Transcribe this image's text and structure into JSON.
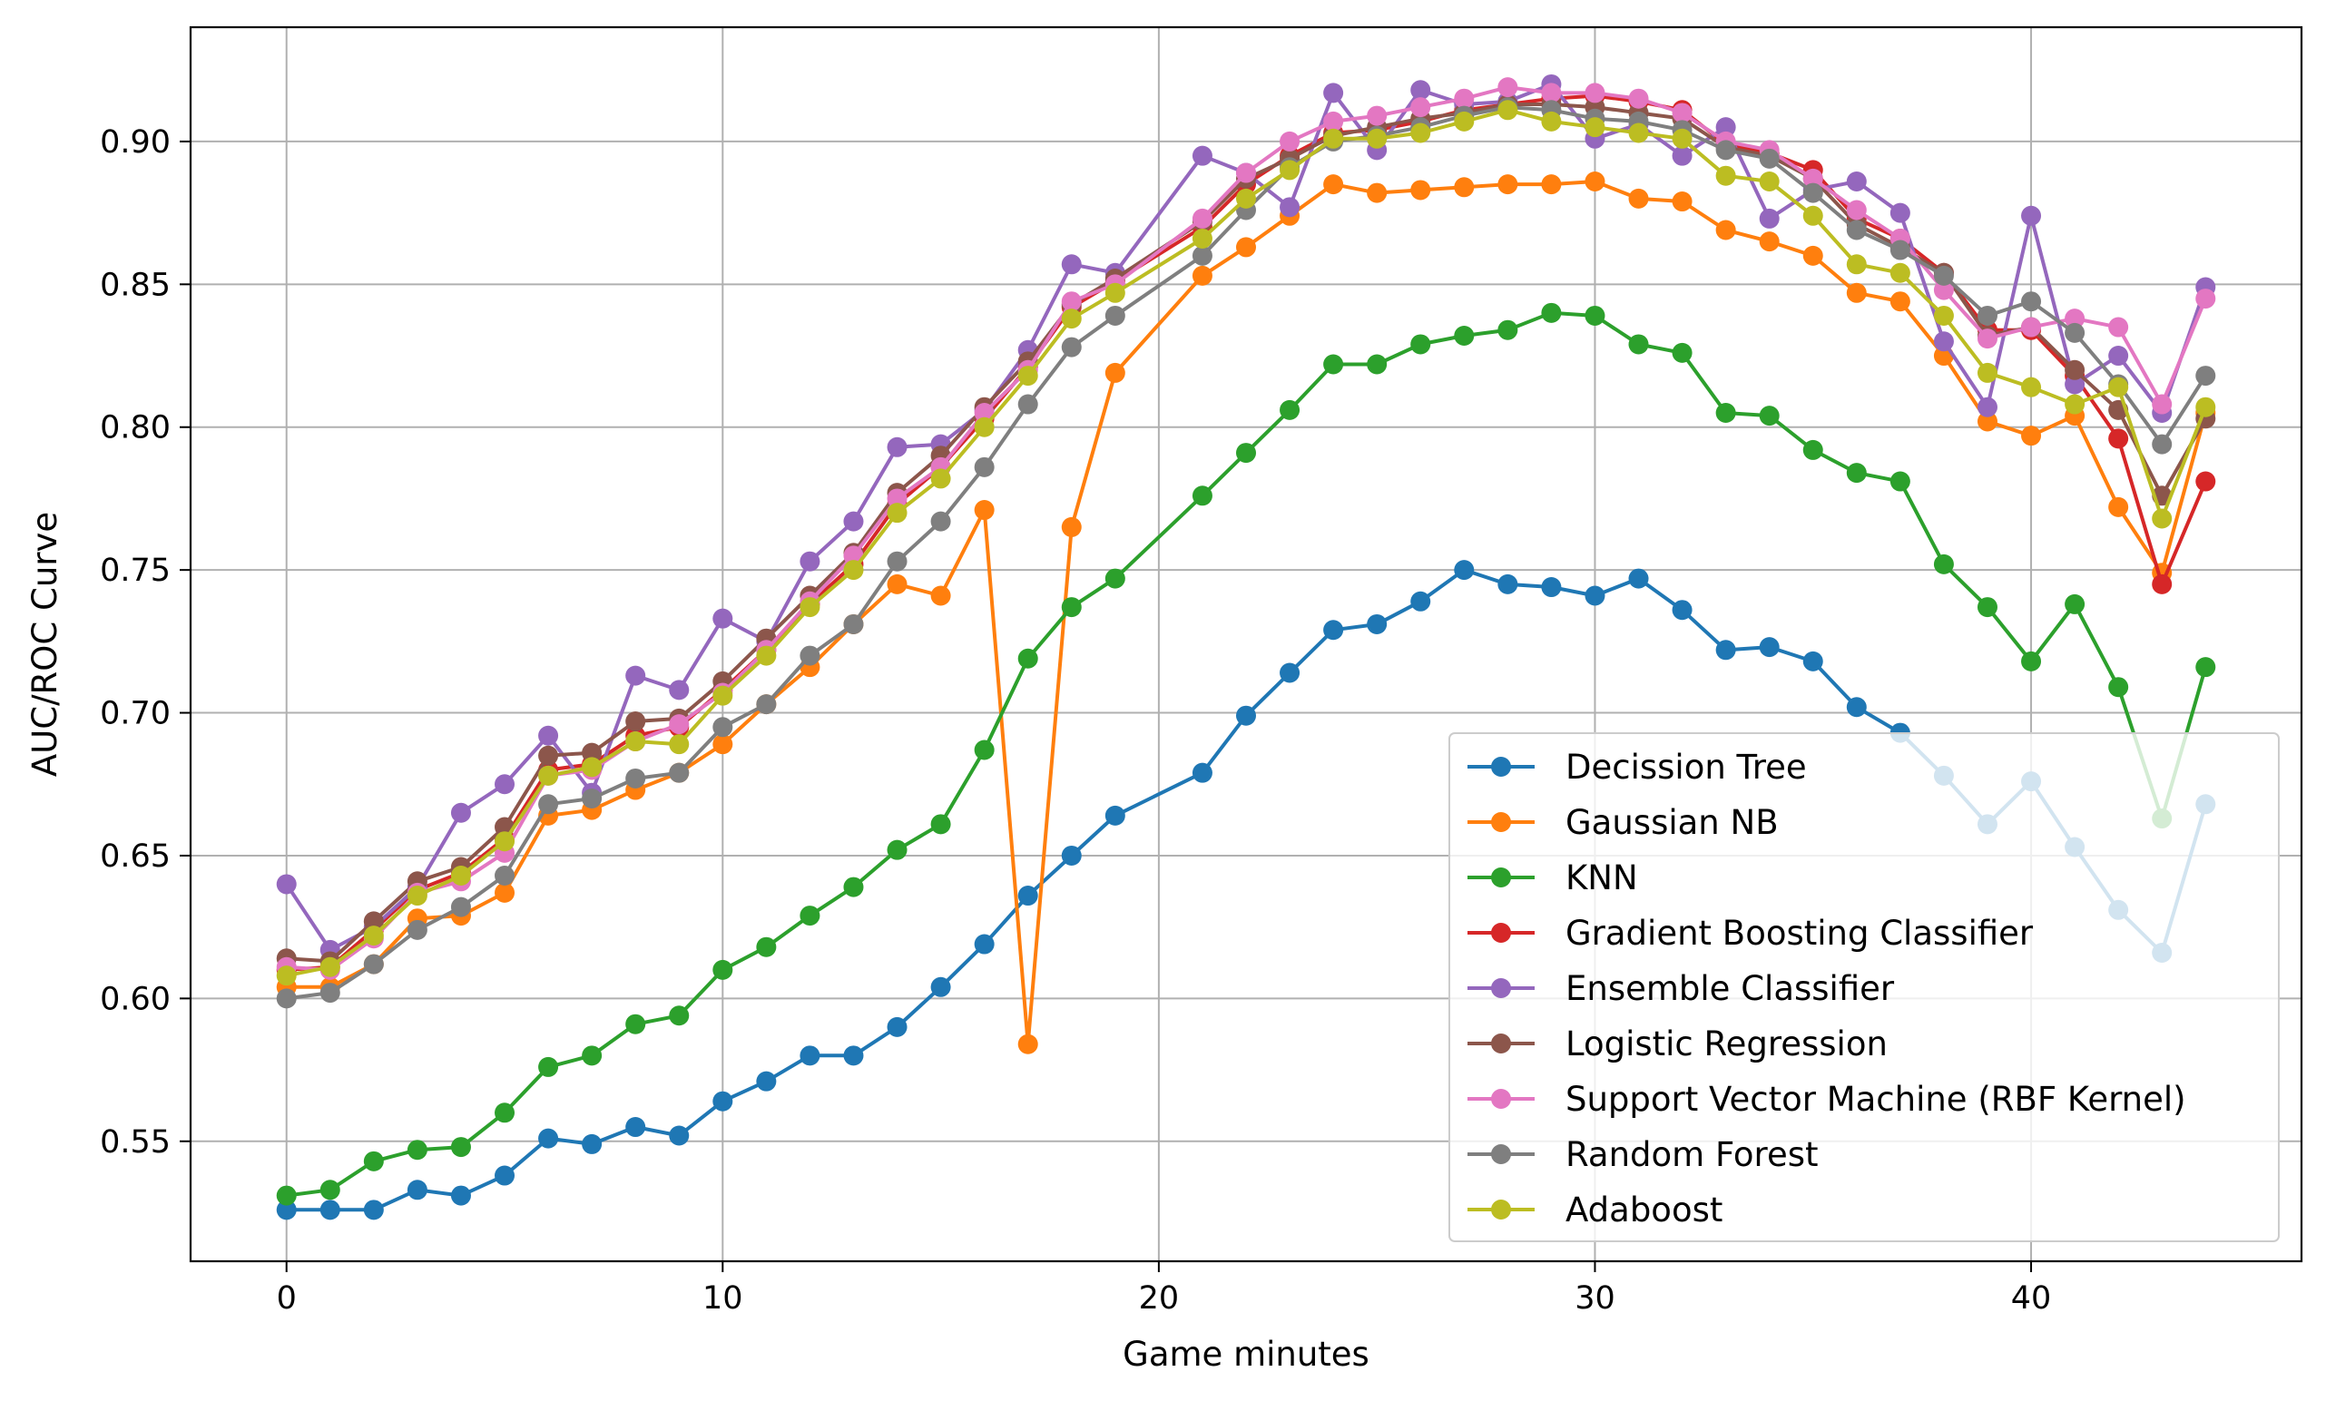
{
  "chart_data": {
    "type": "line",
    "title": "",
    "xlabel": "Game minutes",
    "ylabel": "AUC/ROC Curve",
    "xlim": [
      -2.2,
      46.2
    ],
    "ylim": [
      0.508,
      0.94
    ],
    "xticks": [
      0,
      10,
      20,
      30,
      40
    ],
    "yticks": [
      0.55,
      0.6,
      0.65,
      0.7,
      0.75,
      0.8,
      0.85,
      0.9
    ],
    "ytick_labels": [
      "0.55",
      "0.60",
      "0.65",
      "0.70",
      "0.75",
      "0.80",
      "0.85",
      "0.90"
    ],
    "grid": true,
    "legend_position": "lower right",
    "x": [
      0,
      1,
      2,
      3,
      4,
      5,
      6,
      7,
      8,
      9,
      10,
      11,
      12,
      13,
      14,
      15,
      16,
      17,
      18,
      19,
      21,
      22,
      23,
      24,
      25,
      26,
      27,
      28,
      29,
      30,
      31,
      32,
      33,
      34,
      35,
      36,
      37,
      38,
      39,
      40,
      41,
      42,
      43,
      44
    ],
    "series": [
      {
        "name": "Decission Tree",
        "color": "#1f77b4",
        "values": [
          0.526,
          0.526,
          0.526,
          0.533,
          0.531,
          0.538,
          0.551,
          0.549,
          0.555,
          0.552,
          0.564,
          0.571,
          0.58,
          0.58,
          0.59,
          0.604,
          0.619,
          0.636,
          0.65,
          0.664,
          0.679,
          0.699,
          0.714,
          0.729,
          0.731,
          0.739,
          0.75,
          0.745,
          0.744,
          0.741,
          0.747,
          0.736,
          0.722,
          0.723,
          0.718,
          0.702,
          0.693,
          0.678,
          0.661,
          0.676,
          0.653,
          0.631,
          0.616,
          0.668
        ]
      },
      {
        "name": "Gaussian NB",
        "color": "#ff7f0e",
        "values": [
          0.604,
          0.604,
          0.612,
          0.628,
          0.629,
          0.637,
          0.664,
          0.666,
          0.673,
          0.679,
          0.689,
          0.703,
          0.716,
          0.731,
          0.745,
          0.741,
          0.771,
          0.584,
          0.765,
          0.819,
          0.853,
          0.863,
          0.874,
          0.885,
          0.882,
          0.883,
          0.884,
          0.885,
          0.885,
          0.886,
          0.88,
          0.879,
          0.869,
          0.865,
          0.86,
          0.847,
          0.844,
          0.825,
          0.802,
          0.797,
          0.804,
          0.772,
          0.749,
          0.805
        ]
      },
      {
        "name": "KNN",
        "color": "#2ca02c",
        "values": [
          0.531,
          0.533,
          0.543,
          0.547,
          0.548,
          0.56,
          0.576,
          0.58,
          0.591,
          0.594,
          0.61,
          0.618,
          0.629,
          0.639,
          0.652,
          0.661,
          0.687,
          0.719,
          0.737,
          0.747,
          0.776,
          0.791,
          0.806,
          0.822,
          0.822,
          0.829,
          0.832,
          0.834,
          0.84,
          0.839,
          0.829,
          0.826,
          0.805,
          0.804,
          0.792,
          0.784,
          0.781,
          0.752,
          0.737,
          0.718,
          0.738,
          0.709,
          0.663,
          0.716
        ]
      },
      {
        "name": "Gradient Boosting Classifier",
        "color": "#d62728",
        "values": [
          0.61,
          0.611,
          0.624,
          0.638,
          0.644,
          0.656,
          0.68,
          0.682,
          0.692,
          0.695,
          0.708,
          0.722,
          0.738,
          0.752,
          0.773,
          0.786,
          0.803,
          0.821,
          0.842,
          0.851,
          0.87,
          0.885,
          0.895,
          0.903,
          0.904,
          0.907,
          0.911,
          0.913,
          0.915,
          0.916,
          0.914,
          0.911,
          0.899,
          0.896,
          0.89,
          0.873,
          0.866,
          0.854,
          0.834,
          0.834,
          0.818,
          0.796,
          0.745,
          0.781
        ]
      },
      {
        "name": "Ensemble Classifier",
        "color": "#9467bd",
        "values": [
          0.64,
          0.617,
          0.625,
          0.639,
          0.665,
          0.675,
          0.692,
          0.672,
          0.713,
          0.708,
          0.733,
          0.725,
          0.753,
          0.767,
          0.793,
          0.794,
          0.806,
          0.827,
          0.857,
          0.854,
          0.895,
          0.889,
          0.877,
          0.917,
          0.897,
          0.918,
          0.913,
          0.914,
          0.92,
          0.901,
          0.906,
          0.895,
          0.905,
          0.873,
          0.883,
          0.886,
          0.875,
          0.83,
          0.807,
          0.874,
          0.815,
          0.825,
          0.805,
          0.849
        ]
      },
      {
        "name": "Logistic Regression",
        "color": "#8c564b",
        "values": [
          0.614,
          0.613,
          0.627,
          0.641,
          0.646,
          0.66,
          0.685,
          0.686,
          0.697,
          0.698,
          0.711,
          0.726,
          0.741,
          0.756,
          0.777,
          0.79,
          0.807,
          0.823,
          0.843,
          0.852,
          0.872,
          0.887,
          0.894,
          0.902,
          0.905,
          0.908,
          0.91,
          0.913,
          0.913,
          0.912,
          0.91,
          0.908,
          0.898,
          0.895,
          0.887,
          0.871,
          0.863,
          0.854,
          0.832,
          0.835,
          0.82,
          0.806,
          0.776,
          0.803
        ]
      },
      {
        "name": "Support Vector Machine (RBF Kernel)",
        "color": "#e377c2",
        "values": [
          0.611,
          0.61,
          0.621,
          0.637,
          0.641,
          0.651,
          0.678,
          0.68,
          0.69,
          0.696,
          0.707,
          0.722,
          0.739,
          0.755,
          0.775,
          0.786,
          0.805,
          0.82,
          0.844,
          0.85,
          0.873,
          0.889,
          0.9,
          0.907,
          0.909,
          0.912,
          0.915,
          0.919,
          0.917,
          0.917,
          0.915,
          0.91,
          0.9,
          0.897,
          0.887,
          0.876,
          0.866,
          0.848,
          0.831,
          0.835,
          0.838,
          0.835,
          0.808,
          0.845
        ]
      },
      {
        "name": "Random Forest",
        "color": "#7f7f7f",
        "values": [
          0.6,
          0.602,
          0.612,
          0.624,
          0.632,
          0.643,
          0.668,
          0.67,
          0.677,
          0.679,
          0.695,
          0.703,
          0.72,
          0.731,
          0.753,
          0.767,
          0.786,
          0.808,
          0.828,
          0.839,
          0.86,
          0.876,
          0.891,
          0.9,
          0.902,
          0.905,
          0.909,
          0.912,
          0.911,
          0.908,
          0.907,
          0.904,
          0.897,
          0.894,
          0.882,
          0.869,
          0.862,
          0.853,
          0.839,
          0.844,
          0.833,
          0.815,
          0.794,
          0.818
        ]
      },
      {
        "name": "Adaboost",
        "color": "#bcbd22",
        "values": [
          0.608,
          0.611,
          0.622,
          0.636,
          0.643,
          0.655,
          0.678,
          0.681,
          0.69,
          0.689,
          0.706,
          0.72,
          0.737,
          0.75,
          0.77,
          0.782,
          0.8,
          0.818,
          0.838,
          0.847,
          0.866,
          0.88,
          0.89,
          0.901,
          0.901,
          0.903,
          0.907,
          0.911,
          0.907,
          0.905,
          0.903,
          0.901,
          0.888,
          0.886,
          0.874,
          0.857,
          0.854,
          0.839,
          0.819,
          0.814,
          0.808,
          0.814,
          0.768,
          0.807
        ]
      }
    ]
  }
}
